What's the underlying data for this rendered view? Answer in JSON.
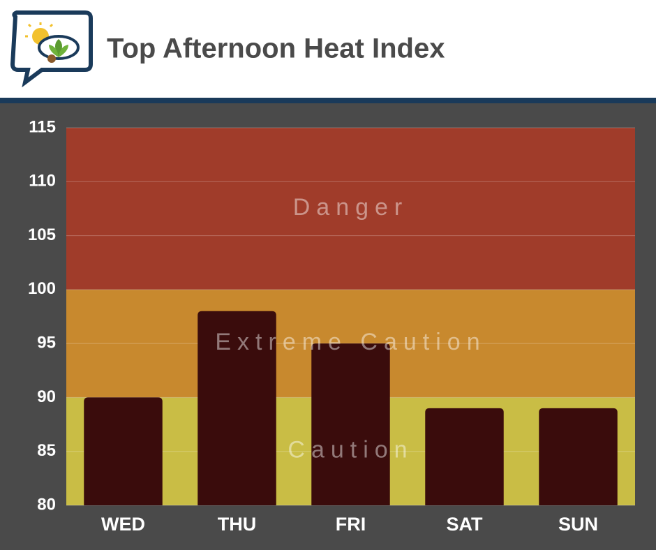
{
  "chart_data": {
    "type": "bar",
    "title": "Top Afternoon Heat Index",
    "categories": [
      "WED",
      "THU",
      "FRI",
      "SAT",
      "SUN"
    ],
    "values": [
      90,
      98,
      95,
      89,
      89
    ],
    "color": "#3a0c0c",
    "bands": [
      {
        "label": "Caution",
        "from": 80,
        "to": 90,
        "color": "#c9bd45"
      },
      {
        "label": "Extreme Caution",
        "from": 90,
        "to": 100,
        "color": "#c8892e"
      },
      {
        "label": "Danger",
        "from": 100,
        "to": 115,
        "color": "#a03c2a"
      }
    ],
    "ylim": [
      80,
      115
    ],
    "yticks": [
      80,
      85,
      90,
      95,
      100,
      105,
      110,
      115
    ],
    "grid": true
  }
}
